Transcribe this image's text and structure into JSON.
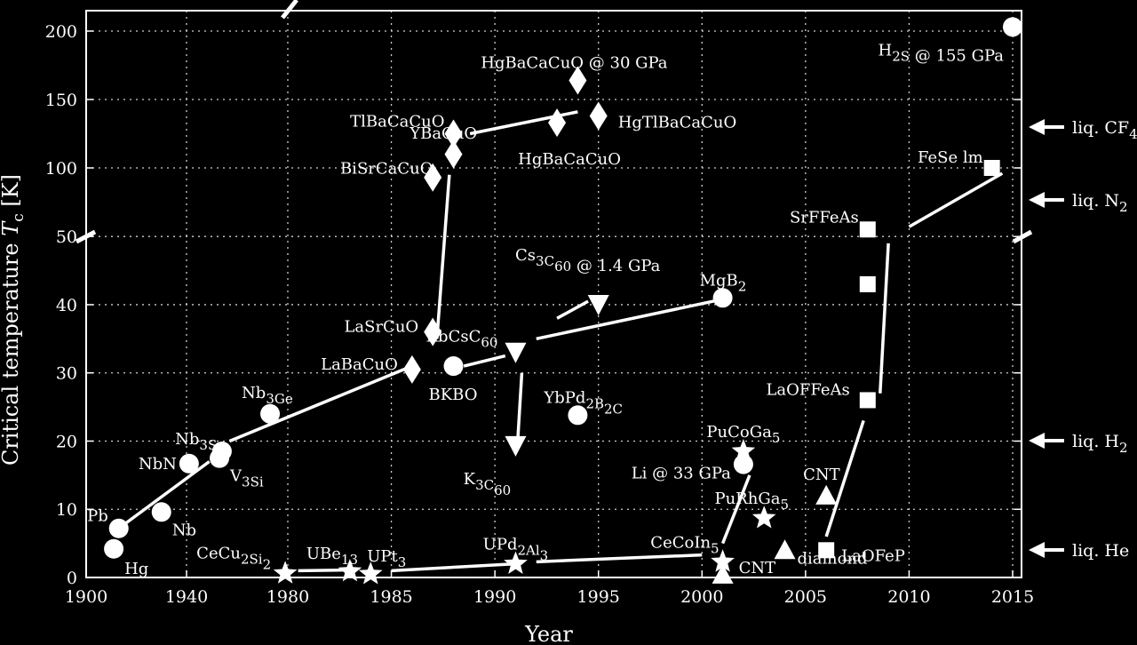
{
  "chart_data": {
    "type": "scatter",
    "xlabel": "Year",
    "ylabel": "Critical temperature T_c [K]",
    "y_break": "broken axis between 50 and 100 K",
    "x_ticks": [
      "1900",
      "1940",
      "1980",
      "1985",
      "1990",
      "1995",
      "2000",
      "2005",
      "2010",
      "2015"
    ],
    "y_ticks": [
      "0",
      "10",
      "20",
      "30",
      "40",
      "50",
      "100",
      "150",
      "200"
    ],
    "grid": true,
    "series": [
      {
        "marker": "circle",
        "points": [
          {
            "x": "1911",
            "y": 4.2,
            "label": "Hg"
          },
          {
            "x": "1913",
            "y": 7.2,
            "label": "Pb"
          },
          {
            "x": "1930",
            "y": 9.6,
            "label": "Nb"
          },
          {
            "x": "1941",
            "y": 16.7,
            "label": "NbN"
          },
          {
            "x": "1953",
            "y": 17.5,
            "label": "V_3Si"
          },
          {
            "x": "1954",
            "y": 18.5,
            "label": "Nb_3Sn"
          },
          {
            "x": "1973",
            "y": 24,
            "label": "Nb_3Ge"
          },
          {
            "x": "1988",
            "y": 31,
            "label": "BKBO"
          },
          {
            "x": "2001",
            "y": 41,
            "label": "MgB_2"
          },
          {
            "x": "1994",
            "y": 23.8,
            "label": "YbPd_2B_2C"
          },
          {
            "x": "2002",
            "y": 16.6,
            "label": "Li @ 33 GPa"
          },
          {
            "x": "2015",
            "y": 203,
            "label": "H_2S @ 155 GPa"
          }
        ]
      },
      {
        "marker": "diamond",
        "points": [
          {
            "x": "1986",
            "y": 30.5,
            "label": "LaBaCuO"
          },
          {
            "x": "1987",
            "y": 36,
            "label": "LaSrCuO"
          },
          {
            "x": "1987",
            "y": 93,
            "label": "YBaCuO"
          },
          {
            "x": "1988",
            "y": 110,
            "label": "BiSrCaCuO"
          },
          {
            "x": "1988",
            "y": 125,
            "label": "TlBaCaCuO"
          },
          {
            "x": "1993",
            "y": 133,
            "label": "HgBaCaCuO"
          },
          {
            "x": "1994",
            "y": 164,
            "label": "HgBaCaCuO @ 30 GPa"
          },
          {
            "x": "1995",
            "y": 138,
            "label": "HgTlBaCaCuO"
          }
        ]
      },
      {
        "marker": "triangle-down",
        "points": [
          {
            "x": "1991",
            "y": 19.3,
            "label": "K_3C_60"
          },
          {
            "x": "1991",
            "y": 33,
            "label": "RbCsC_60"
          },
          {
            "x": "1995",
            "y": 40,
            "label": "Cs_3C_60 @ 1.4 GPa"
          }
        ]
      },
      {
        "marker": "star",
        "points": [
          {
            "x": "1979",
            "y": 0.6,
            "label": "CeCu_2Si_2"
          },
          {
            "x": "1983",
            "y": 0.9,
            "label": "UBe_13"
          },
          {
            "x": "1984",
            "y": 0.5,
            "label": "UPt_3"
          },
          {
            "x": "1991",
            "y": 2,
            "label": "UPd_2Al_3"
          },
          {
            "x": "2001",
            "y": 2.3,
            "label": "CeCoIn_5"
          },
          {
            "x": "2002",
            "y": 18.5,
            "label": "PuCoGa_5"
          },
          {
            "x": "2003",
            "y": 8.7,
            "label": "PuRhGa_5"
          }
        ]
      },
      {
        "marker": "triangle-up",
        "points": [
          {
            "x": "2001",
            "y": 0.4,
            "label": "CNT"
          },
          {
            "x": "2004",
            "y": 4,
            "label": "diamond"
          },
          {
            "x": "2006",
            "y": 12,
            "label": "CNT"
          }
        ]
      },
      {
        "marker": "square",
        "points": [
          {
            "x": "2006",
            "y": 4,
            "label": "LaOFeP"
          },
          {
            "x": "2008",
            "y": 26,
            "label": "LaOFFeAs"
          },
          {
            "x": "2008",
            "y": 43,
            "label": ""
          },
          {
            "x": "2008",
            "y": 55,
            "label": "SrFFeAs"
          },
          {
            "x": "2014",
            "y": 100,
            "label": "FeSe   lm"
          }
        ]
      }
    ],
    "reference_lines": [
      {
        "label": "liq. He",
        "y": 4.2
      },
      {
        "label": "liq. H_2",
        "y": 20
      },
      {
        "label": "liq. N_2",
        "y": 77
      },
      {
        "label": "liq. CF_4",
        "y": 145
      }
    ]
  }
}
